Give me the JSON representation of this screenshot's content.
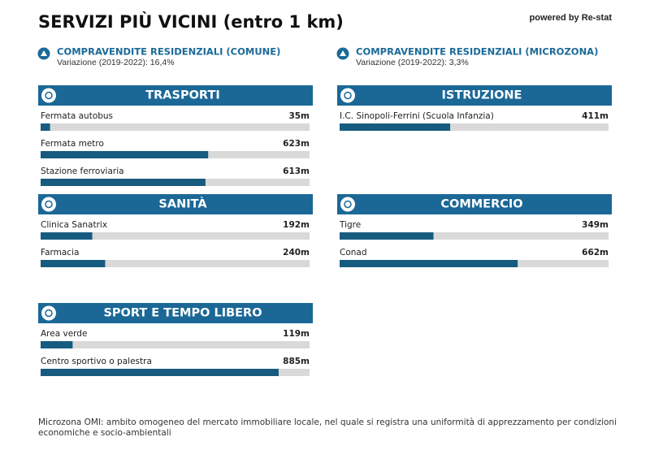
{
  "header": {
    "title": "SERVIZI PIÙ VICINI (entro 1 km)",
    "powered_by": "powered by Re-stat"
  },
  "stats": [
    {
      "title": "COMPRAVENDITE RESIDENZIALI (COMUNE)",
      "subtitle": "Variazione (2019-2022): 16,4%"
    },
    {
      "title": "COMPRAVENDITE RESIDENZIALI (MICROZONA)",
      "subtitle": "Variazione (2019-2022): 3,3%"
    }
  ],
  "xlim": [
    0,
    1000
  ],
  "sections": [
    {
      "title": "TRASPORTI",
      "items": [
        {
          "label": "Fermata autobus",
          "value": 35,
          "value_label": "35m"
        },
        {
          "label": "Fermata metro",
          "value": 623,
          "value_label": "623m"
        },
        {
          "label": "Stazione ferroviaria",
          "value": 613,
          "value_label": "613m"
        }
      ]
    },
    {
      "title": "ISTRUZIONE",
      "items": [
        {
          "label": "I.C. Sinopoli-Ferrini (Scuola Infanzia)",
          "value": 411,
          "value_label": "411m"
        }
      ]
    },
    {
      "title": "SANITÀ",
      "items": [
        {
          "label": "Clinica Sanatrix",
          "value": 192,
          "value_label": "192m"
        },
        {
          "label": "Farmacia",
          "value": 240,
          "value_label": "240m"
        }
      ]
    },
    {
      "title": "COMMERCIO",
      "items": [
        {
          "label": "Tigre",
          "value": 349,
          "value_label": "349m"
        },
        {
          "label": "Conad",
          "value": 662,
          "value_label": "662m"
        }
      ]
    },
    {
      "title": "SPORT E TEMPO LIBERO",
      "items": [
        {
          "label": "Area verde",
          "value": 119,
          "value_label": "119m"
        },
        {
          "label": "Centro sportivo o palestra",
          "value": 885,
          "value_label": "885m"
        }
      ]
    }
  ],
  "footnote": "Microzona OMI: ambito omogeneo del mercato immobiliare locale, nel quale si registra una uniformità di apprezzamento per condizioni economiche e socio-ambientali"
}
